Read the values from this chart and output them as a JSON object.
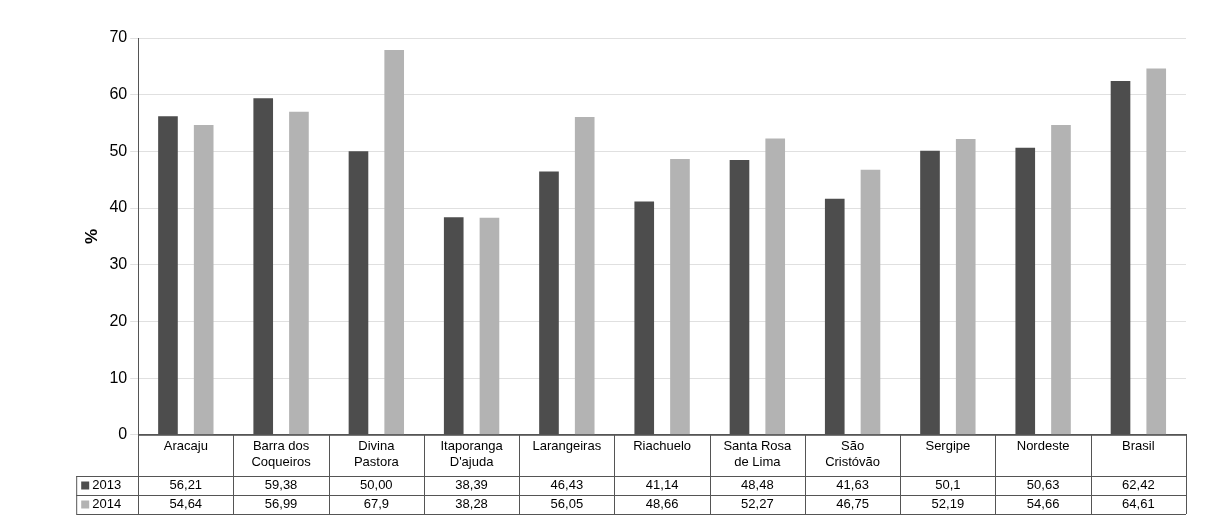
{
  "chart_data": {
    "type": "bar",
    "ylabel": "%",
    "categories": [
      "Aracaju",
      "Barra dos Coqueiros",
      "Divina Pastora",
      "Itaporanga D'ajuda",
      "Larangeiras",
      "Riachuelo",
      "Santa Rosa de Lima",
      "São Cristóvão",
      "Sergipe",
      "Nordeste",
      "Brasil"
    ],
    "series": [
      {
        "name": "2013",
        "color": "#4d4d4d",
        "values": [
          56.21,
          59.38,
          50.0,
          38.39,
          46.43,
          41.14,
          48.48,
          41.63,
          50.1,
          50.63,
          62.42
        ],
        "value_labels": [
          "56,21",
          "59,38",
          "50,00",
          "38,39",
          "46,43",
          "41,14",
          "48,48",
          "41,63",
          "50,1",
          "50,63",
          "62,42"
        ]
      },
      {
        "name": "2014",
        "color": "#b3b3b3",
        "values": [
          54.64,
          56.99,
          67.9,
          38.28,
          56.05,
          48.66,
          52.27,
          46.75,
          52.19,
          54.66,
          64.61
        ],
        "value_labels": [
          "54,64",
          "56,99",
          "67,9",
          "38,28",
          "56,05",
          "48,66",
          "52,27",
          "46,75",
          "52,19",
          "54,66",
          "64,61"
        ]
      }
    ],
    "ylim": [
      0,
      70
    ],
    "yticks": [
      0,
      10,
      20,
      30,
      40,
      50,
      60,
      70
    ],
    "grid": "y",
    "legend": "bottom left"
  }
}
